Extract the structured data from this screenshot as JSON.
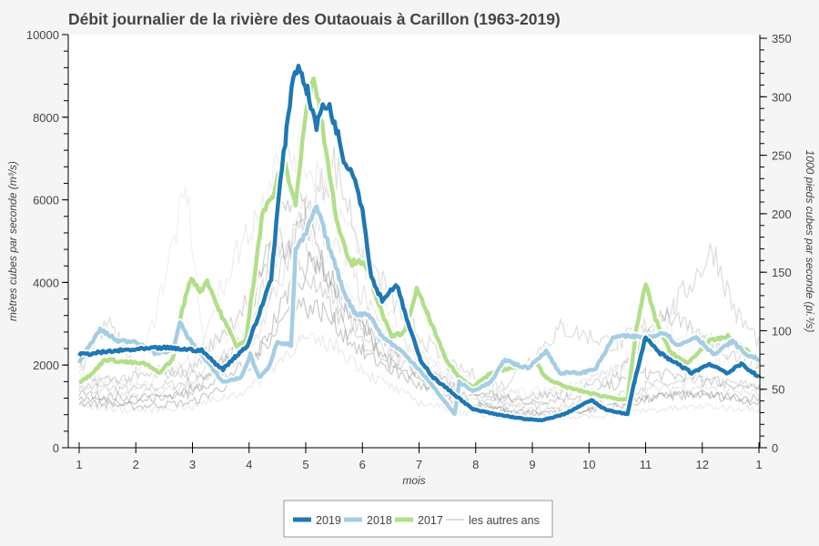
{
  "chart_data": {
    "type": "line",
    "title": "Débit journalier de la rivière des Outaouais à Carillon (1963-2019)",
    "xlabel": "mois",
    "ylabel": "mètres cubes par seconde (m³/s)",
    "ylabel_right": "1000 pieds cubes par seconde (pi.³/s)",
    "xlim": [
      1,
      13
    ],
    "ylim": [
      0,
      10000
    ],
    "ylim_right": [
      0,
      350
    ],
    "x_ticks": [
      "1",
      "2",
      "3",
      "4",
      "5",
      "6",
      "7",
      "8",
      "9",
      "10",
      "11",
      "12",
      "1"
    ],
    "y_ticks": [
      "0",
      "2000",
      "4000",
      "6000",
      "8000",
      "10000"
    ],
    "y_ticks_right": [
      "0",
      "50",
      "100",
      "150",
      "200",
      "250",
      "300",
      "350"
    ],
    "grid": false,
    "legend": "bottom",
    "series": [
      {
        "name": "2019",
        "color": "#1f78b4",
        "points": [
          [
            1.0,
            2250
          ],
          [
            1.7,
            2350
          ],
          [
            2.5,
            2420
          ],
          [
            3.17,
            2350
          ],
          [
            3.38,
            2070
          ],
          [
            3.54,
            1900
          ],
          [
            3.75,
            2200
          ],
          [
            3.97,
            2470
          ],
          [
            4.18,
            3240
          ],
          [
            4.39,
            4120
          ],
          [
            4.55,
            6430
          ],
          [
            4.66,
            7640
          ],
          [
            4.78,
            9070
          ],
          [
            4.9,
            9180
          ],
          [
            5.03,
            8630
          ],
          [
            5.19,
            7750
          ],
          [
            5.3,
            8300
          ],
          [
            5.42,
            8240
          ],
          [
            5.58,
            7530
          ],
          [
            5.67,
            6980
          ],
          [
            5.84,
            6650
          ],
          [
            6.0,
            5770
          ],
          [
            6.16,
            4120
          ],
          [
            6.35,
            3570
          ],
          [
            6.6,
            3960
          ],
          [
            6.83,
            2910
          ],
          [
            7.02,
            2140
          ],
          [
            7.25,
            1700
          ],
          [
            7.55,
            1370
          ],
          [
            7.95,
            930
          ],
          [
            8.35,
            810
          ],
          [
            8.84,
            700
          ],
          [
            9.16,
            660
          ],
          [
            9.56,
            810
          ],
          [
            10.04,
            1150
          ],
          [
            10.28,
            930
          ],
          [
            10.68,
            810
          ],
          [
            10.8,
            1590
          ],
          [
            11.0,
            2690
          ],
          [
            11.2,
            2350
          ],
          [
            11.4,
            2140
          ],
          [
            11.57,
            2030
          ],
          [
            11.81,
            1810
          ],
          [
            12.13,
            2030
          ],
          [
            12.45,
            1810
          ],
          [
            12.7,
            2030
          ],
          [
            13.0,
            1700
          ]
        ]
      },
      {
        "name": "2018",
        "color": "#a6cee3",
        "points": [
          [
            1.0,
            2070
          ],
          [
            1.37,
            2860
          ],
          [
            1.69,
            2580
          ],
          [
            2.0,
            2580
          ],
          [
            2.33,
            2290
          ],
          [
            2.65,
            2350
          ],
          [
            2.78,
            3020
          ],
          [
            2.97,
            2580
          ],
          [
            3.22,
            2140
          ],
          [
            3.54,
            1590
          ],
          [
            3.86,
            1700
          ],
          [
            4.02,
            2250
          ],
          [
            4.18,
            1700
          ],
          [
            4.34,
            1920
          ],
          [
            4.5,
            2580
          ],
          [
            4.74,
            2470
          ],
          [
            4.82,
            4780
          ],
          [
            4.98,
            5110
          ],
          [
            5.19,
            5840
          ],
          [
            5.38,
            5000
          ],
          [
            5.67,
            3790
          ],
          [
            5.87,
            3240
          ],
          [
            6.11,
            3240
          ],
          [
            6.35,
            2690
          ],
          [
            6.67,
            2360
          ],
          [
            6.99,
            1920
          ],
          [
            7.31,
            1370
          ],
          [
            7.63,
            810
          ],
          [
            7.71,
            1590
          ],
          [
            7.95,
            1370
          ],
          [
            8.27,
            1590
          ],
          [
            8.52,
            2140
          ],
          [
            8.68,
            2030
          ],
          [
            8.92,
            1920
          ],
          [
            9.24,
            2350
          ],
          [
            9.48,
            1810
          ],
          [
            9.88,
            1810
          ],
          [
            10.12,
            1920
          ],
          [
            10.44,
            2690
          ],
          [
            10.84,
            2690
          ],
          [
            11.08,
            2690
          ],
          [
            11.33,
            2800
          ],
          [
            11.57,
            2470
          ],
          [
            11.89,
            2690
          ],
          [
            12.21,
            2250
          ],
          [
            12.53,
            2580
          ],
          [
            12.78,
            2250
          ],
          [
            13.0,
            2140
          ]
        ]
      },
      {
        "name": "2017",
        "color": "#b2df8a",
        "points": [
          [
            1.0,
            1590
          ],
          [
            1.21,
            1760
          ],
          [
            1.45,
            2140
          ],
          [
            1.85,
            2070
          ],
          [
            2.17,
            2030
          ],
          [
            2.41,
            1810
          ],
          [
            2.65,
            2140
          ],
          [
            2.82,
            3350
          ],
          [
            2.98,
            4120
          ],
          [
            3.14,
            3790
          ],
          [
            3.26,
            4050
          ],
          [
            3.46,
            3350
          ],
          [
            3.78,
            2470
          ],
          [
            3.94,
            2580
          ],
          [
            4.1,
            4230
          ],
          [
            4.23,
            5660
          ],
          [
            4.42,
            6100
          ],
          [
            4.61,
            6980
          ],
          [
            4.82,
            5880
          ],
          [
            4.98,
            7860
          ],
          [
            5.14,
            9070
          ],
          [
            5.3,
            7750
          ],
          [
            5.54,
            5550
          ],
          [
            5.79,
            4450
          ],
          [
            5.95,
            4560
          ],
          [
            6.11,
            4230
          ],
          [
            6.35,
            3240
          ],
          [
            6.51,
            2690
          ],
          [
            6.75,
            2800
          ],
          [
            6.96,
            3830
          ],
          [
            7.15,
            3240
          ],
          [
            7.47,
            2140
          ],
          [
            7.71,
            1700
          ],
          [
            7.95,
            1480
          ],
          [
            8.27,
            1810
          ],
          [
            8.6,
            1920
          ],
          [
            9.08,
            2030
          ],
          [
            9.24,
            1700
          ],
          [
            9.56,
            1480
          ],
          [
            10.2,
            1260
          ],
          [
            10.68,
            1150
          ],
          [
            10.84,
            2910
          ],
          [
            11.0,
            3960
          ],
          [
            11.17,
            3130
          ],
          [
            11.41,
            2360
          ],
          [
            11.73,
            2030
          ],
          [
            12.13,
            2580
          ],
          [
            12.45,
            2690
          ],
          [
            12.78,
            2360
          ],
          [
            13.0,
            2030
          ]
        ]
      }
    ],
    "other_years": {
      "name": "les autres ans",
      "color": "#999999",
      "series": [
        [
          [
            1,
            1500
          ],
          [
            2,
            1400
          ],
          [
            3,
            1600
          ],
          [
            3.8,
            2200
          ],
          [
            4.5,
            4800
          ],
          [
            5,
            5200
          ],
          [
            5.5,
            3600
          ],
          [
            6,
            2800
          ],
          [
            7,
            1800
          ],
          [
            8,
            1200
          ],
          [
            9,
            1000
          ],
          [
            10,
            1100
          ],
          [
            11,
            1500
          ],
          [
            12,
            1600
          ],
          [
            13,
            1500
          ]
        ],
        [
          [
            1,
            1300
          ],
          [
            2,
            1200
          ],
          [
            3,
            1300
          ],
          [
            3.9,
            2600
          ],
          [
            4.4,
            5500
          ],
          [
            4.9,
            6000
          ],
          [
            5.4,
            4200
          ],
          [
            6,
            3000
          ],
          [
            7,
            1900
          ],
          [
            8,
            1300
          ],
          [
            9,
            1100
          ],
          [
            10,
            1300
          ],
          [
            11,
            1800
          ],
          [
            12,
            1700
          ],
          [
            13,
            1400
          ]
        ],
        [
          [
            1,
            1700
          ],
          [
            2,
            1500
          ],
          [
            2.9,
            6200
          ],
          [
            3.2,
            2400
          ],
          [
            4,
            3000
          ],
          [
            4.6,
            8200
          ],
          [
            5,
            5500
          ],
          [
            5.6,
            3800
          ],
          [
            6.3,
            3000
          ],
          [
            7,
            2200
          ],
          [
            8,
            1500
          ],
          [
            9,
            1200
          ],
          [
            10,
            1600
          ],
          [
            11,
            2400
          ],
          [
            12,
            2300
          ],
          [
            13,
            1800
          ]
        ],
        [
          [
            1,
            1100
          ],
          [
            2,
            1000
          ],
          [
            3,
            1100
          ],
          [
            4,
            1800
          ],
          [
            4.7,
            3800
          ],
          [
            5.2,
            4600
          ],
          [
            5.8,
            3300
          ],
          [
            6.5,
            2000
          ],
          [
            7.5,
            1200
          ],
          [
            8.5,
            900
          ],
          [
            9.5,
            800
          ],
          [
            10.5,
            1000
          ],
          [
            11.5,
            1300
          ],
          [
            13,
            1200
          ]
        ],
        [
          [
            1,
            1900
          ],
          [
            1.5,
            3000
          ],
          [
            2,
            2000
          ],
          [
            3,
            1700
          ],
          [
            4,
            2800
          ],
          [
            4.8,
            5000
          ],
          [
            5.5,
            6900
          ],
          [
            6,
            4800
          ],
          [
            6.7,
            3200
          ],
          [
            7.5,
            2000
          ],
          [
            8.5,
            1500
          ],
          [
            9.5,
            2900
          ],
          [
            10.5,
            2500
          ],
          [
            11.5,
            3400
          ],
          [
            12.2,
            4800
          ],
          [
            12.6,
            3200
          ],
          [
            13,
            2600
          ]
        ],
        [
          [
            1,
            1400
          ],
          [
            2,
            1300
          ],
          [
            3,
            1500
          ],
          [
            4,
            2300
          ],
          [
            4.6,
            4200
          ],
          [
            5,
            5800
          ],
          [
            5.7,
            4500
          ],
          [
            6.4,
            2600
          ],
          [
            7.2,
            1600
          ],
          [
            8,
            1100
          ],
          [
            9,
            900
          ],
          [
            10,
            1000
          ],
          [
            11,
            1400
          ],
          [
            12,
            1500
          ],
          [
            13,
            1300
          ]
        ],
        [
          [
            1,
            1600
          ],
          [
            2,
            1700
          ],
          [
            3,
            1900
          ],
          [
            4,
            3600
          ],
          [
            4.5,
            5200
          ],
          [
            5.1,
            4000
          ],
          [
            5.8,
            2700
          ],
          [
            6.6,
            2100
          ],
          [
            7.5,
            1500
          ],
          [
            8.5,
            1200
          ],
          [
            9.5,
            1300
          ],
          [
            10.5,
            1700
          ],
          [
            11.3,
            3300
          ],
          [
            12,
            2600
          ],
          [
            13,
            2000
          ]
        ],
        [
          [
            1,
            1200
          ],
          [
            2,
            1100
          ],
          [
            3,
            1400
          ],
          [
            4,
            2000
          ],
          [
            4.8,
            3500
          ],
          [
            5.3,
            3300
          ],
          [
            6,
            2300
          ],
          [
            7,
            1500
          ],
          [
            8,
            1000
          ],
          [
            9,
            800
          ],
          [
            10,
            900
          ],
          [
            11,
            1200
          ],
          [
            12,
            1300
          ],
          [
            13,
            1100
          ]
        ],
        [
          [
            1,
            1800
          ],
          [
            2,
            1500
          ],
          [
            3,
            2100
          ],
          [
            3.7,
            4500
          ],
          [
            4.2,
            5800
          ],
          [
            4.8,
            7200
          ],
          [
            5.3,
            6500
          ],
          [
            6.1,
            4300
          ],
          [
            6.8,
            2500
          ],
          [
            7.5,
            1700
          ],
          [
            8.5,
            1300
          ],
          [
            9.5,
            1400
          ],
          [
            10.5,
            1900
          ],
          [
            11.4,
            2900
          ],
          [
            12.3,
            2500
          ],
          [
            13,
            2100
          ]
        ],
        [
          [
            1,
            1000
          ],
          [
            2,
            900
          ],
          [
            3,
            1000
          ],
          [
            4,
            1400
          ],
          [
            4.9,
            2600
          ],
          [
            5.5,
            2500
          ],
          [
            6.2,
            1700
          ],
          [
            7,
            1100
          ],
          [
            8,
            800
          ],
          [
            9,
            700
          ],
          [
            10,
            750
          ],
          [
            11,
            900
          ],
          [
            12,
            1000
          ],
          [
            13,
            950
          ]
        ]
      ]
    }
  },
  "legend": {
    "items": [
      {
        "label": "2019",
        "color": "#1f78b4"
      },
      {
        "label": "2018",
        "color": "#a6cee3"
      },
      {
        "label": "2017",
        "color": "#b2df8a"
      },
      {
        "label": "les autres ans",
        "color": "#dddddd"
      }
    ]
  }
}
